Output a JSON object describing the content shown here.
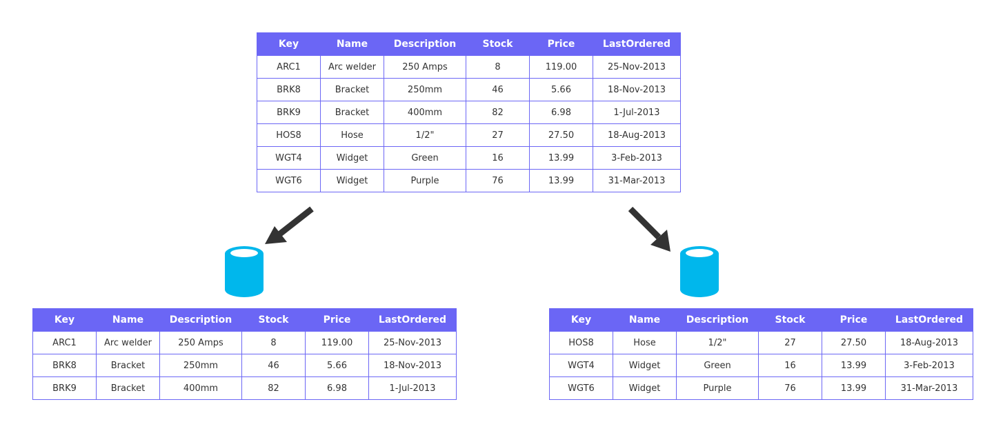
{
  "columns": [
    "Key",
    "Name",
    "Description",
    "Stock",
    "Price",
    "LastOrdered"
  ],
  "source_table": {
    "rows": [
      [
        "ARC1",
        "Arc welder",
        "250 Amps",
        "8",
        "119.00",
        "25-Nov-2013"
      ],
      [
        "BRK8",
        "Bracket",
        "250mm",
        "46",
        "5.66",
        "18-Nov-2013"
      ],
      [
        "BRK9",
        "Bracket",
        "400mm",
        "82",
        "6.98",
        "1-Jul-2013"
      ],
      [
        "HOS8",
        "Hose",
        "1/2\"",
        "27",
        "27.50",
        "18-Aug-2013"
      ],
      [
        "WGT4",
        "Widget",
        "Green",
        "16",
        "13.99",
        "3-Feb-2013"
      ],
      [
        "WGT6",
        "Widget",
        "Purple",
        "76",
        "13.99",
        "31-Mar-2013"
      ]
    ]
  },
  "shard_left": {
    "rows": [
      [
        "ARC1",
        "Arc welder",
        "250 Amps",
        "8",
        "119.00",
        "25-Nov-2013"
      ],
      [
        "BRK8",
        "Bracket",
        "250mm",
        "46",
        "5.66",
        "18-Nov-2013"
      ],
      [
        "BRK9",
        "Bracket",
        "400mm",
        "82",
        "6.98",
        "1-Jul-2013"
      ]
    ]
  },
  "shard_right": {
    "rows": [
      [
        "HOS8",
        "Hose",
        "1/2\"",
        "27",
        "27.50",
        "18-Aug-2013"
      ],
      [
        "WGT4",
        "Widget",
        "Green",
        "16",
        "13.99",
        "3-Feb-2013"
      ],
      [
        "WGT6",
        "Widget",
        "Purple",
        "76",
        "13.99",
        "31-Mar-2013"
      ]
    ]
  },
  "colors": {
    "header_bg": "#6b66f5",
    "border": "#6b66f5",
    "database": "#00b7ec",
    "arrow": "#333333"
  },
  "icons": {
    "database": "database-icon",
    "arrow": "arrow-icon"
  }
}
